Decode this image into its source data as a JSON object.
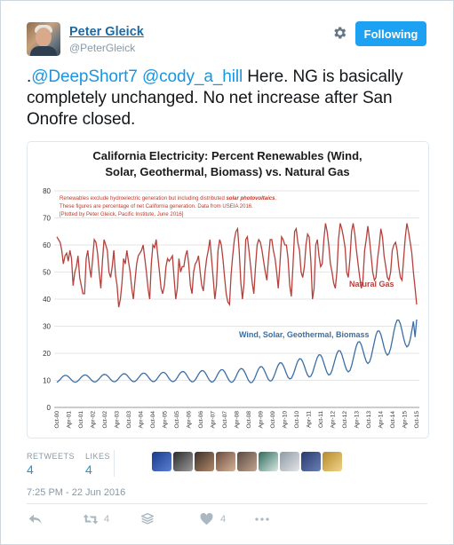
{
  "tweet": {
    "display_name": "Peter Gleick",
    "handle": "@PeterGleick",
    "follow_label": "Following",
    "text_prefix": ".",
    "mention_1": "@DeepShort7",
    "mention_2": "@cody_a_hill",
    "text_body": " Here. NG is basically completely unchanged. No net increase after San Onofre closed.",
    "retweets_label": "RETWEETS",
    "retweets_count": "4",
    "likes_label": "LIKES",
    "likes_count": "4",
    "timestamp": "7:25 PM - 22 Jun 2016",
    "retweet_action_count": "4",
    "like_action_count": "4"
  },
  "colors": {
    "link": "#1b95e0",
    "follow_button": "#1da1f2",
    "natural_gas": "#b5403c",
    "renewables": "#3b6ea5",
    "note_text": "#c0392b"
  },
  "icons": [
    "gear-icon",
    "reply-icon",
    "retweet-icon",
    "stack-icon",
    "heart-icon",
    "more-icon"
  ],
  "chart_data": {
    "type": "line",
    "title_line1": "California Electricity: Percent Renewables (Wind,",
    "title_line2": "Solar, Geothermal, Biomass) vs. Natural Gas",
    "note_line1_pre": "Renewables exclude hydroelectric generation but including distributed ",
    "note_line1_em": "solar photovoltaics",
    "note_line1_post": ".",
    "note_line2": "These figures are percentage of net California generation. Data from USEIA 2016.",
    "note_line3": "[Plotted by Peter Gleick, Pacific Institute, June 2016]",
    "ylim": [
      0,
      80
    ],
    "yticks": [
      0,
      10,
      20,
      30,
      40,
      50,
      60,
      70,
      80
    ],
    "xticks": [
      "Oct-00",
      "Apr-01",
      "Oct-01",
      "Apr-02",
      "Oct-02",
      "Apr-03",
      "Oct-03",
      "Apr-04",
      "Oct-04",
      "Apr-05",
      "Oct-05",
      "Apr-06",
      "Oct-06",
      "Apr-07",
      "Oct-07",
      "Apr-08",
      "Oct-08",
      "Apr-09",
      "Oct-09",
      "Apr-10",
      "Oct-10",
      "Apr-11",
      "Oct-11",
      "Apr-12",
      "Oct-12",
      "Apr-13",
      "Oct-13",
      "Apr-14",
      "Oct-14",
      "Apr-15",
      "Oct-15"
    ],
    "series": [
      {
        "name": "Natural Gas",
        "values": [
          63,
          62,
          61,
          58,
          53,
          56,
          57,
          54,
          58,
          55,
          45,
          50,
          52,
          56,
          48,
          45,
          42,
          42,
          55,
          58,
          52,
          48,
          55,
          62,
          61,
          57,
          50,
          44,
          54,
          62,
          60,
          58,
          50,
          48,
          52,
          58,
          49,
          45,
          37,
          40,
          46,
          55,
          53,
          58,
          54,
          50,
          44,
          40,
          47,
          53,
          56,
          57,
          58,
          60,
          55,
          50,
          44,
          40,
          53,
          60,
          59,
          62,
          56,
          50,
          44,
          42,
          45,
          52,
          55,
          54,
          55,
          56,
          48,
          40,
          44,
          55,
          50,
          52,
          52,
          56,
          58,
          53,
          45,
          42,
          50,
          53,
          54,
          56,
          50,
          45,
          43,
          50,
          55,
          58,
          62,
          55,
          48,
          40,
          45,
          58,
          62,
          60,
          55,
          48,
          42,
          39,
          38,
          49,
          56,
          62,
          65,
          66,
          58,
          46,
          40,
          46,
          62,
          63,
          58,
          52,
          46,
          42,
          52,
          60,
          62,
          61,
          58,
          54,
          50,
          47,
          55,
          62,
          62,
          58,
          55,
          50,
          44,
          53,
          63,
          62,
          60,
          60,
          55,
          45,
          41,
          52,
          65,
          66,
          61,
          58,
          50,
          48,
          52,
          60,
          64,
          63,
          54,
          40,
          44,
          60,
          62,
          56,
          52,
          53,
          62,
          68,
          65,
          60,
          53,
          50,
          46,
          44,
          50,
          62,
          68,
          66,
          63,
          59,
          50,
          48,
          55,
          65,
          68,
          64,
          58,
          53,
          48,
          44,
          47,
          58,
          62,
          67,
          62,
          56,
          50,
          47,
          48,
          55,
          60,
          66,
          63,
          56,
          52,
          48,
          47,
          50,
          58,
          60,
          61,
          58,
          52,
          48,
          47,
          55,
          63,
          68,
          65,
          61,
          57,
          50,
          44,
          38
        ],
        "end_values_note": "Natural Gas ~38-68%"
      },
      {
        "name": "Wind, Solar, Geothermal, Biomass",
        "values_note": "approximate monthly trend"
      }
    ],
    "series_labels": {
      "natural_gas": "Natural Gas",
      "renewables": "Wind, Solar, Geothermal, Biomass"
    }
  }
}
